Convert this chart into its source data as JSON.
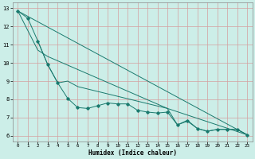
{
  "xlabel": "Humidex (Indice chaleur)",
  "bg_color": "#cceee8",
  "line_color": "#1a7a6e",
  "grid_color": "#d4a0a0",
  "xlim": [
    -0.5,
    23.5
  ],
  "ylim": [
    5.7,
    13.3
  ],
  "xticks": [
    0,
    1,
    2,
    3,
    4,
    5,
    6,
    7,
    8,
    9,
    10,
    11,
    12,
    13,
    14,
    15,
    16,
    17,
    18,
    19,
    20,
    21,
    22,
    23
  ],
  "yticks": [
    6,
    7,
    8,
    9,
    10,
    11,
    12,
    13
  ],
  "line_dotted_markers": {
    "x": [
      0,
      1,
      2,
      3,
      4,
      5,
      6,
      7,
      8,
      9,
      10,
      11,
      12,
      13,
      14,
      15,
      16,
      17,
      18,
      19,
      20,
      21,
      22,
      23
    ],
    "y": [
      12.85,
      12.45,
      11.2,
      9.9,
      8.9,
      8.05,
      7.55,
      7.5,
      7.65,
      7.8,
      7.75,
      7.75,
      7.4,
      7.3,
      7.25,
      7.3,
      6.6,
      6.8,
      6.4,
      6.25,
      6.35,
      6.35,
      6.35,
      6.05
    ]
  },
  "line_straight1": {
    "x": [
      0,
      23
    ],
    "y": [
      12.85,
      6.05
    ]
  },
  "line_smooth2": {
    "x": [
      0,
      2,
      3,
      15,
      23
    ],
    "y": [
      12.85,
      10.7,
      10.35,
      7.5,
      6.05
    ]
  },
  "line_zigzag": {
    "x": [
      2,
      3,
      4,
      5,
      6,
      15,
      16,
      17,
      18,
      19,
      20,
      21,
      22,
      23
    ],
    "y": [
      11.2,
      9.9,
      8.9,
      9.0,
      8.7,
      7.5,
      6.6,
      6.85,
      6.4,
      6.25,
      6.35,
      6.35,
      6.35,
      6.05
    ]
  }
}
